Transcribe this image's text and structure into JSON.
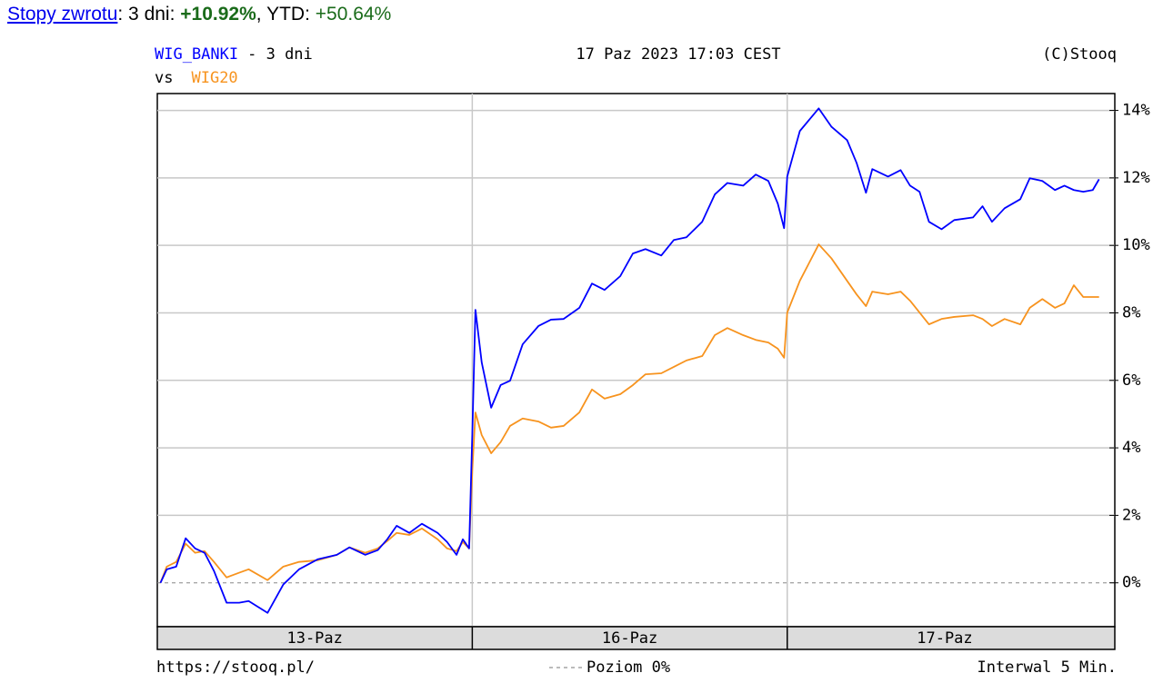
{
  "header": {
    "link": "Stopy zwrotu",
    "period": ": 3 dni: ",
    "period_value": "+10.92%",
    "ytd": ", YTD: ",
    "ytd_value": "+50.64%"
  },
  "chart_data": {
    "type": "line",
    "title_suffix": "- 3 dni",
    "vs": "vs",
    "date": "17 Paz 2023 17:03 CEST",
    "copyright": "(C)Stooq",
    "footer": {
      "url": "https://stooq.pl/",
      "level": "Poziom 0%",
      "interval": "Interwal 5 Min."
    },
    "x": [
      0.01,
      0.03,
      0.06,
      0.09,
      0.12,
      0.15,
      0.18,
      0.22,
      0.26,
      0.29,
      0.35,
      0.4,
      0.45,
      0.51,
      0.57,
      0.61,
      0.66,
      0.7,
      0.73,
      0.76,
      0.8,
      0.84,
      0.89,
      0.92,
      0.95,
      0.97,
      0.99,
      1.0,
      1.01,
      1.03,
      1.06,
      1.09,
      1.12,
      1.16,
      1.21,
      1.25,
      1.29,
      1.34,
      1.38,
      1.42,
      1.47,
      1.51,
      1.55,
      1.6,
      1.64,
      1.68,
      1.73,
      1.77,
      1.81,
      1.86,
      1.9,
      1.94,
      1.97,
      1.99,
      2.0,
      2.04,
      2.1,
      2.14,
      2.19,
      2.22,
      2.25,
      2.27,
      2.32,
      2.36,
      2.39,
      2.42,
      2.45,
      2.49,
      2.53,
      2.59,
      2.62,
      2.65,
      2.69,
      2.74,
      2.77,
      2.81,
      2.85,
      2.88,
      2.91,
      2.94,
      2.97,
      2.99
    ],
    "series": [
      {
        "name": "WIG_BANKI",
        "color": "#0000ff",
        "values": [
          0,
          0.4,
          0.48,
          1.32,
          1.02,
          0.89,
          0.35,
          -0.59,
          -0.59,
          -0.54,
          -0.89,
          -0.05,
          0.4,
          0.7,
          0.83,
          1.05,
          0.83,
          0.97,
          1.29,
          1.69,
          1.48,
          1.75,
          1.48,
          1.21,
          0.83,
          1.29,
          1.02,
          4.38,
          8.09,
          6.53,
          5.19,
          5.86,
          5.99,
          7.07,
          7.61,
          7.8,
          7.82,
          8.15,
          8.87,
          8.68,
          9.09,
          9.76,
          9.89,
          9.7,
          10.16,
          10.24,
          10.7,
          11.51,
          11.85,
          11.77,
          12.1,
          11.91,
          11.24,
          10.51,
          12.04,
          13.39,
          14.06,
          13.52,
          13.12,
          12.45,
          11.56,
          12.26,
          12.04,
          12.23,
          11.77,
          11.59,
          10.7,
          10.48,
          10.75,
          10.83,
          11.16,
          10.7,
          11.1,
          11.37,
          11.99,
          11.91,
          11.64,
          11.77,
          11.64,
          11.59,
          11.64,
          11.96
        ]
      },
      {
        "name": "WIG20",
        "color": "#f7931e",
        "values": [
          0,
          0.48,
          0.62,
          1.16,
          0.89,
          0.94,
          0.62,
          0.16,
          0.3,
          0.4,
          0.08,
          0.48,
          0.62,
          0.67,
          0.83,
          1.05,
          0.89,
          1.02,
          1.24,
          1.48,
          1.42,
          1.61,
          1.29,
          1.02,
          0.94,
          1.21,
          1.02,
          3.31,
          5.05,
          4.38,
          3.84,
          4.17,
          4.65,
          4.87,
          4.78,
          4.6,
          4.65,
          5.05,
          5.73,
          5.46,
          5.59,
          5.86,
          6.18,
          6.21,
          6.4,
          6.59,
          6.72,
          7.34,
          7.55,
          7.34,
          7.2,
          7.12,
          6.94,
          6.67,
          8.01,
          8.95,
          10.03,
          9.62,
          8.95,
          8.55,
          8.2,
          8.63,
          8.55,
          8.63,
          8.36,
          8.01,
          7.66,
          7.82,
          7.88,
          7.93,
          7.82,
          7.61,
          7.82,
          7.66,
          8.15,
          8.41,
          8.15,
          8.28,
          8.82,
          8.47,
          8.47,
          8.47
        ]
      }
    ],
    "xlim": [
      0,
      3.04
    ],
    "xticks": [
      {
        "value": 0.5,
        "label": "13-Paz"
      },
      {
        "value": 1.5,
        "label": "16-Paz"
      },
      {
        "value": 2.5,
        "label": "17-Paz"
      }
    ],
    "xgrid": [
      1,
      2
    ],
    "ylim": [
      -1.3,
      14.5
    ],
    "yticks": [
      {
        "value": 0,
        "label": "0%"
      },
      {
        "value": 2,
        "label": "2%"
      },
      {
        "value": 4,
        "label": "4%"
      },
      {
        "value": 6,
        "label": "6%"
      },
      {
        "value": 8,
        "label": "8%"
      },
      {
        "value": 10,
        "label": "10%"
      },
      {
        "value": 12,
        "label": "12%"
      },
      {
        "value": 14,
        "label": "14%"
      }
    ],
    "grid": true,
    "zero_line": true
  }
}
